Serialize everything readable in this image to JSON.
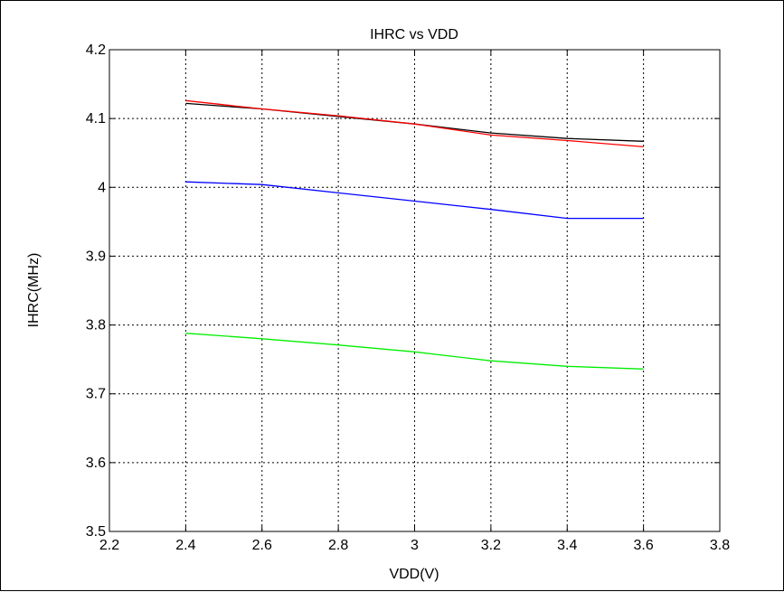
{
  "chart_data": {
    "type": "line",
    "title": "IHRC vs VDD",
    "xlabel": "VDD(V)",
    "ylabel": "IHRC(MHz)",
    "xlim": [
      2.2,
      3.8
    ],
    "ylim": [
      3.5,
      4.2
    ],
    "xticks": [
      "2.2",
      "2.4",
      "2.6",
      "2.8",
      "3",
      "3.2",
      "3.4",
      "3.6",
      "3.8"
    ],
    "yticks": [
      "3.5",
      "3.6",
      "3.7",
      "3.8",
      "3.9",
      "4",
      "4.1",
      "4.2"
    ],
    "grid": true,
    "x": [
      2.4,
      2.6,
      2.8,
      3.0,
      3.2,
      3.4,
      3.6
    ],
    "series": [
      {
        "color": "#000000",
        "values": [
          4.122,
          4.114,
          4.103,
          4.092,
          4.079,
          4.071,
          4.067
        ]
      },
      {
        "color": "#ff0000",
        "values": [
          4.126,
          4.114,
          4.104,
          4.092,
          4.076,
          4.068,
          4.059
        ]
      },
      {
        "color": "#0000ff",
        "values": [
          4.008,
          4.004,
          3.992,
          3.98,
          3.968,
          3.955,
          3.955
        ]
      },
      {
        "color": "#00ee00",
        "values": [
          3.788,
          3.78,
          3.771,
          3.761,
          3.748,
          3.74,
          3.736
        ]
      }
    ]
  }
}
